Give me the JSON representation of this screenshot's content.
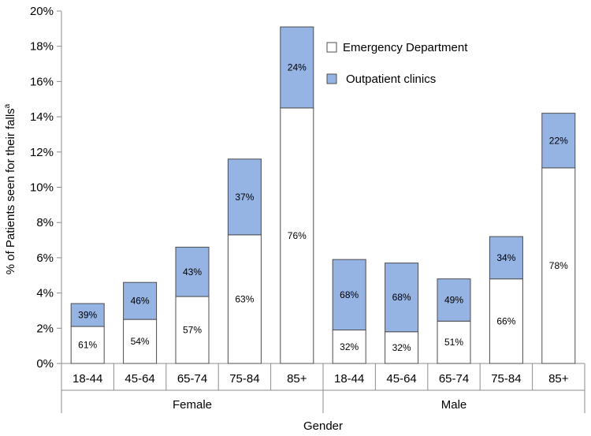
{
  "chart_data": {
    "type": "bar",
    "stacked": true,
    "categories": [
      "18-44",
      "45-64",
      "65-74",
      "75-84",
      "85+",
      "18-44",
      "45-64",
      "65-74",
      "75-84",
      "85+"
    ],
    "groups": [
      {
        "label": "Female",
        "count": 5
      },
      {
        "label": "Male",
        "count": 5
      }
    ],
    "totals": [
      3.4,
      4.6,
      6.6,
      11.6,
      19.1,
      5.9,
      5.7,
      4.8,
      7.2,
      14.2
    ],
    "series": [
      {
        "name": "Emergency Department",
        "color": "#ffffff",
        "values": [
          2.1,
          2.5,
          3.8,
          7.3,
          14.5,
          1.9,
          1.8,
          2.4,
          4.8,
          11.1
        ],
        "labels": [
          "61%",
          "54%",
          "57%",
          "63%",
          "76%",
          "32%",
          "32%",
          "51%",
          "66%",
          "78%"
        ]
      },
      {
        "name": "Outpatient clinics",
        "color": "#95b3e3",
        "values": [
          1.3,
          2.1,
          2.8,
          4.3,
          4.6,
          4.0,
          3.9,
          2.4,
          2.4,
          3.1
        ],
        "labels": [
          "39%",
          "46%",
          "43%",
          "37%",
          "24%",
          "68%",
          "68%",
          "49%",
          "34%",
          "22%"
        ]
      }
    ],
    "yticks": [
      "0%",
      "2%",
      "4%",
      "6%",
      "8%",
      "10%",
      "12%",
      "14%",
      "16%",
      "18%",
      "20%"
    ],
    "ylim": [
      0,
      20
    ],
    "ylabel": "% of Patients seen for their falls",
    "ylabel_sup": "a",
    "xlabel": "Gender",
    "legend_position": "top-right",
    "grid": false
  }
}
